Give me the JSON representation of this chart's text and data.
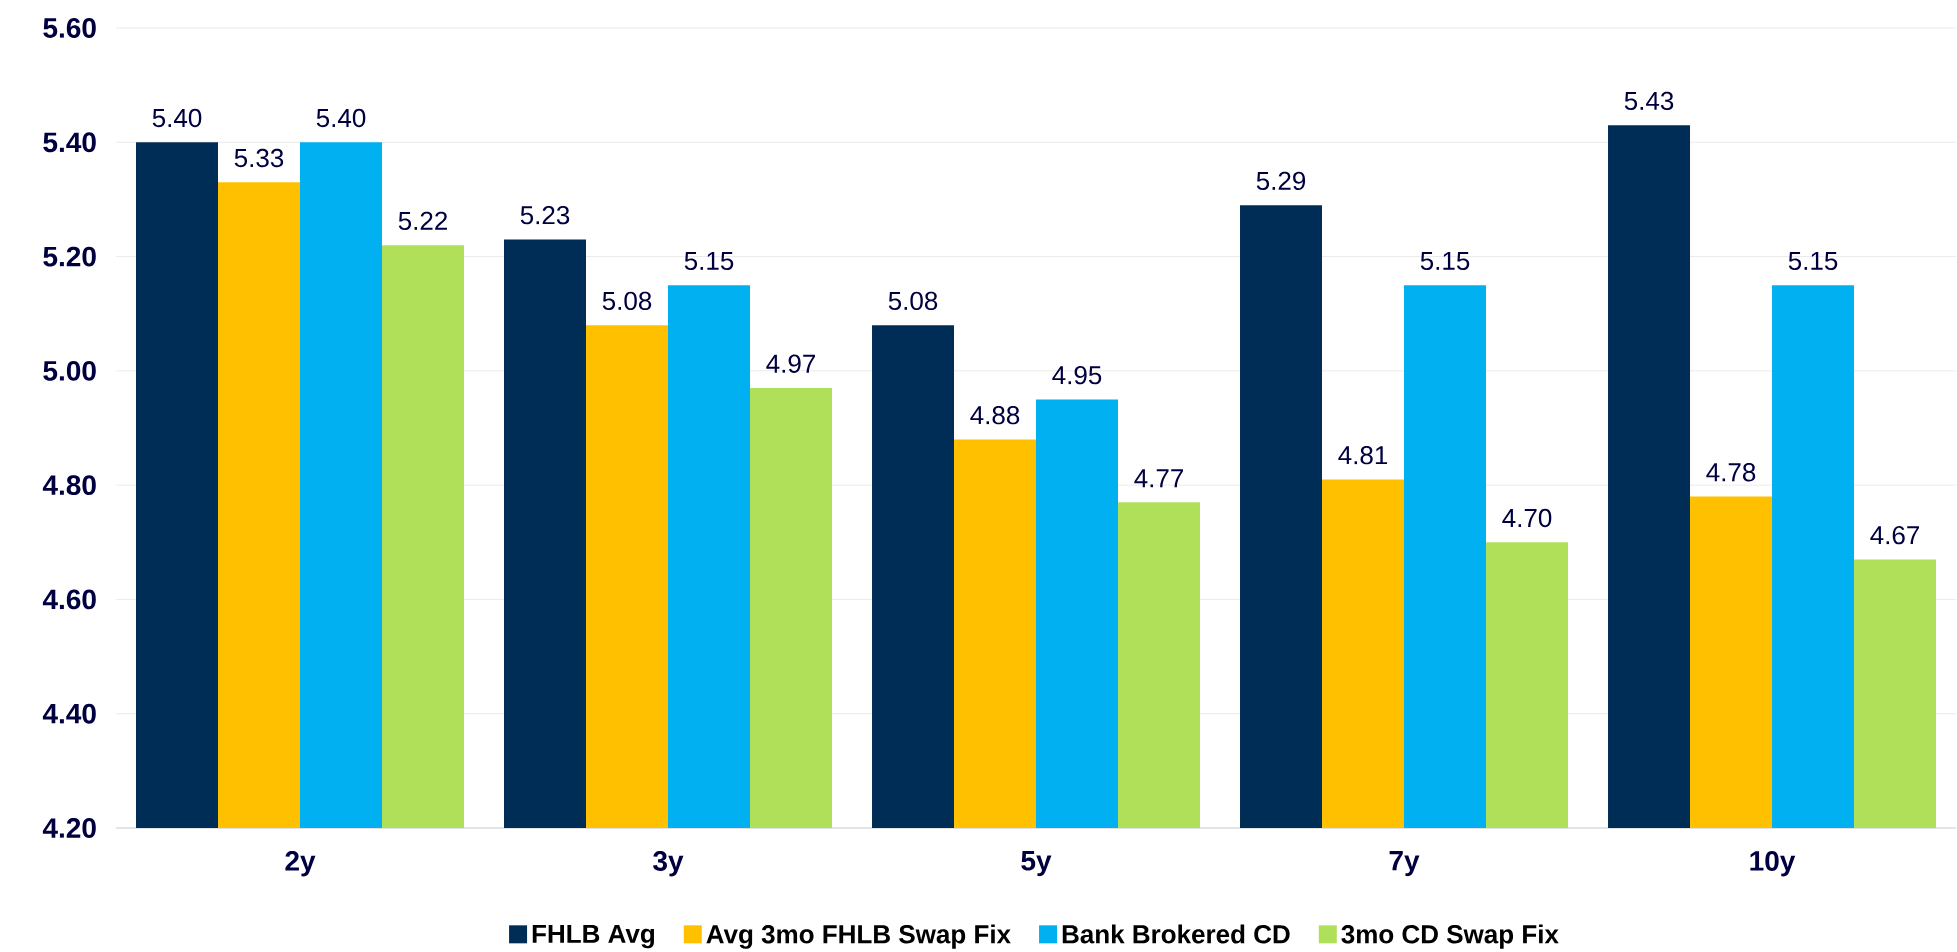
{
  "chart_data": {
    "type": "bar",
    "categories": [
      "2y",
      "3y",
      "5y",
      "7y",
      "10y"
    ],
    "series": [
      {
        "name": "FHLB Avg",
        "color": "#002d55",
        "values": [
          5.4,
          5.23,
          5.08,
          5.29,
          5.43
        ],
        "value_labels": [
          "5.40",
          "5.23",
          "5.08",
          "5.29",
          "5.43"
        ]
      },
      {
        "name": "Avg 3mo FHLB Swap Fix",
        "color": "#ffc000",
        "values": [
          5.33,
          5.08,
          4.88,
          4.81,
          4.78
        ],
        "value_labels": [
          "5.33",
          "5.08",
          "4.88",
          "4.81",
          "4.78"
        ]
      },
      {
        "name": "Bank Brokered CD",
        "color": "#00b0f0",
        "values": [
          5.4,
          5.15,
          4.95,
          5.15,
          5.15
        ],
        "value_labels": [
          "5.40",
          "5.15",
          "4.95",
          "5.15",
          "5.15"
        ]
      },
      {
        "name": "3mo CD Swap Fix",
        "color": "#b0e05a",
        "values": [
          5.22,
          4.97,
          4.77,
          4.7,
          4.67
        ],
        "value_labels": [
          "5.22",
          "4.97",
          "4.77",
          "4.70",
          "4.67"
        ]
      }
    ],
    "ylim": [
      4.2,
      5.6
    ],
    "yticks": [
      {
        "value": 4.2,
        "label": "4.20"
      },
      {
        "value": 4.4,
        "label": "4.40"
      },
      {
        "value": 4.6,
        "label": "4.60"
      },
      {
        "value": 4.8,
        "label": "4.80"
      },
      {
        "value": 5.0,
        "label": "5.00"
      },
      {
        "value": 5.2,
        "label": "5.20"
      },
      {
        "value": 5.4,
        "label": "5.40"
      },
      {
        "value": 5.6,
        "label": "5.60"
      }
    ],
    "grid": "y",
    "legend": "bottom"
  }
}
